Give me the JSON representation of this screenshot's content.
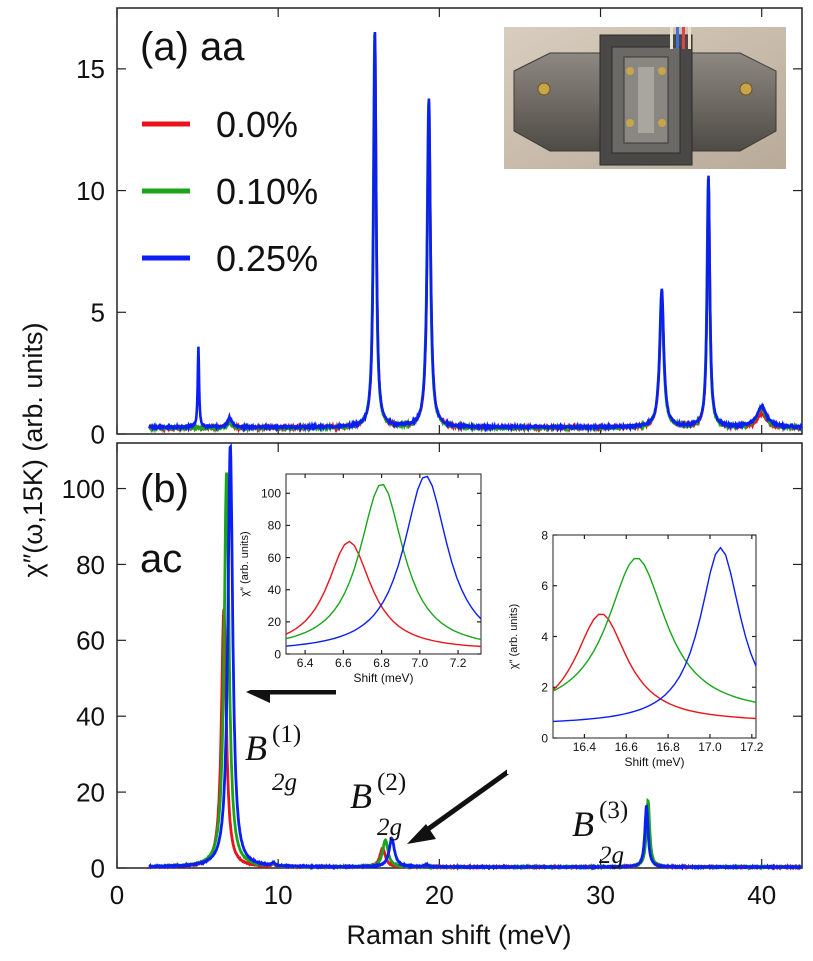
{
  "colors": {
    "red": "#e8141b",
    "green": "#1aa51a",
    "blue": "#0a1ef5"
  },
  "y_axis_label_main": "χ″(ω,15K) (arb. units)",
  "photo_description_icon": "strain-cell-device-photo",
  "chart_data": [
    {
      "id": "panel_a",
      "type": "line",
      "title": "(a) aa",
      "xlabel": "Raman shift (meV)",
      "ylabel": "χ″(ω,15K) (arb. units)",
      "xlim": [
        0,
        42.5
      ],
      "ylim": [
        0,
        17.5
      ],
      "x_ticks": [
        0,
        10,
        20,
        30,
        40
      ],
      "y_ticks": [
        0,
        5,
        10,
        15
      ],
      "y_tick_labels": [
        "0",
        "5",
        "10",
        "15"
      ],
      "legend": [
        "0.0%",
        "0.10%",
        "0.25%"
      ],
      "legend_placement": "top-left",
      "baseline": {
        "0.0%": 0.25,
        "0.10%": 0.25,
        "0.25%": 0.28
      },
      "x_range": [
        2,
        42.5
      ],
      "peaks": [
        {
          "x": 5.05,
          "width": 0.05,
          "heights": [
            0.0,
            0.0,
            3.3
          ]
        },
        {
          "x": 7.0,
          "width": 0.15,
          "heights": [
            0.25,
            0.25,
            0.4
          ]
        },
        {
          "x": 16.0,
          "width": 0.1,
          "heights": [
            16.2,
            16.2,
            16.2
          ]
        },
        {
          "x": 19.35,
          "width": 0.12,
          "heights": [
            13.4,
            13.4,
            13.5
          ]
        },
        {
          "x": 33.8,
          "width": 0.15,
          "heights": [
            5.4,
            5.5,
            5.7
          ]
        },
        {
          "x": 36.7,
          "width": 0.1,
          "heights": [
            10.2,
            10.2,
            10.3
          ]
        },
        {
          "x": 40.0,
          "width": 0.35,
          "heights": [
            0.55,
            0.8,
            0.85
          ]
        }
      ]
    },
    {
      "id": "panel_b",
      "type": "line",
      "title": "(b)",
      "subtitle": "ac",
      "xlabel": "Raman shift (meV)",
      "xlim": [
        0,
        42.5
      ],
      "ylim": [
        0,
        112
      ],
      "x_ticks": [
        0,
        10,
        20,
        30,
        40
      ],
      "x_tick_labels": [
        "0",
        "10",
        "20",
        "30",
        "40"
      ],
      "y_ticks": [
        0,
        20,
        40,
        60,
        80,
        100
      ],
      "y_tick_labels": [
        "0",
        "20",
        "40",
        "60",
        "80",
        "100"
      ],
      "legend": [
        "0.0%",
        "0.10%",
        "0.25%"
      ],
      "x_range": [
        2,
        42.5
      ],
      "peaks": [
        {
          "x": [
            6.63,
            6.8,
            7.03
          ],
          "width": 0.18,
          "heights": [
            68,
            104,
            111
          ]
        },
        {
          "x": [
            16.48,
            16.65,
            17.05
          ],
          "width": 0.2,
          "heights": [
            5.0,
            7.1,
            7.5
          ]
        },
        {
          "x": [
            32.9,
            32.95,
            32.85
          ],
          "width": 0.12,
          "heights": [
            16.0,
            17.5,
            16.0
          ]
        },
        {
          "x": [
            9.7,
            9.7,
            9.7
          ],
          "width": 0.1,
          "heights": [
            0.8,
            0.8,
            0.8
          ]
        },
        {
          "x": [
            19.2,
            19.2,
            19.2
          ],
          "width": 0.1,
          "heights": [
            0.6,
            0.6,
            0.6
          ]
        }
      ],
      "annotations": [
        {
          "label": "B2g(1)",
          "base": "B",
          "sub": "2g",
          "sup": "(1)"
        },
        {
          "label": "B2g(2)",
          "base": "B",
          "sub": "2g",
          "sup": "(2)"
        },
        {
          "label": "B2g(3)",
          "base": "B",
          "sub": "2g",
          "sup": "(3)"
        }
      ]
    },
    {
      "id": "inset_1",
      "type": "line",
      "xlabel": "Shift (meV)",
      "ylabel": "χ″ (arb. units)",
      "xlim": [
        6.3,
        7.32
      ],
      "ylim": [
        0,
        112
      ],
      "x_ticks": [
        6.4,
        6.6,
        6.8,
        7.0,
        7.2
      ],
      "x_tick_labels": [
        "6.4",
        "6.6",
        "6.8",
        "7.0",
        "7.2"
      ],
      "y_ticks": [
        0,
        20,
        40,
        60,
        80,
        100
      ],
      "y_tick_labels": [
        "0",
        "20",
        "40",
        "60",
        "80",
        "100"
      ],
      "series": [
        {
          "name": "0.0%",
          "center": 6.63,
          "height": 68,
          "hwhm": 0.14,
          "offset": 2
        },
        {
          "name": "0.10%",
          "center": 6.8,
          "height": 104,
          "hwhm": 0.14,
          "offset": 2
        },
        {
          "name": "0.25%",
          "center": 7.03,
          "height": 110,
          "hwhm": 0.14,
          "offset": 1
        }
      ]
    },
    {
      "id": "inset_2",
      "type": "line",
      "xlabel": "Shift (meV)",
      "ylabel": "χ″ (arb. units)",
      "xlim": [
        16.25,
        17.22
      ],
      "ylim": [
        0,
        8
      ],
      "x_ticks": [
        16.4,
        16.6,
        16.8,
        17.0,
        17.2
      ],
      "x_tick_labels": [
        "16.4",
        "16.6",
        "16.8",
        "17.0",
        "17.2"
      ],
      "y_ticks": [
        0,
        2,
        4,
        6,
        8
      ],
      "y_tick_labels": [
        "0",
        "2",
        "4",
        "6",
        "8"
      ],
      "series": [
        {
          "name": "0.0%",
          "center": 16.48,
          "height": 4.3,
          "hwhm": 0.15,
          "offset": 0.6
        },
        {
          "name": "0.10%",
          "center": 16.65,
          "height": 6.2,
          "hwhm": 0.17,
          "offset": 0.9
        },
        {
          "name": "0.25%",
          "center": 17.05,
          "height": 7.0,
          "hwhm": 0.12,
          "offset": 0.5
        }
      ]
    }
  ]
}
